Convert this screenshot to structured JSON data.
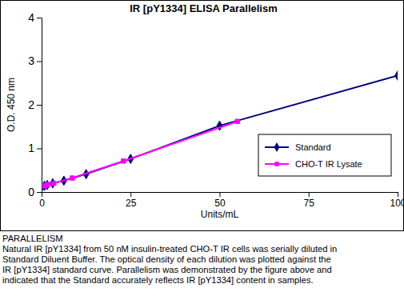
{
  "chart_data": {
    "type": "line",
    "title": "IR [pY1334] ELISA Parallelism",
    "x_label": "Units/mL",
    "y_label": "O.D. 450 nm",
    "xlim": [
      0,
      100
    ],
    "xticks": [
      0,
      25,
      50,
      75,
      100
    ],
    "ylim": [
      0,
      4
    ],
    "yticks": [
      0,
      1,
      2,
      3,
      4
    ],
    "grid": false,
    "legend": "lower right",
    "series": [
      {
        "name": "Standard",
        "color": "#000080",
        "marker": "diamond",
        "x": [
          0,
          0.78,
          1.56,
          3.13,
          6.25,
          12.5,
          25,
          50,
          100
        ],
        "values": [
          0.12,
          0.14,
          0.16,
          0.2,
          0.26,
          0.41,
          0.76,
          1.52,
          2.67
        ]
      },
      {
        "name": "CHO-T IR Lysate",
        "color": "#ff00ff",
        "marker": "square",
        "x": [
          0.86,
          1.7,
          3.4,
          8.6,
          23,
          55
        ],
        "values": [
          0.14,
          0.17,
          0.2,
          0.32,
          0.71,
          1.62
        ]
      }
    ],
    "annotations": [
      "PARALLELISM",
      "Natural IR [pY1334] from 50 nM insulin-treated CHO-T IR cells was serially diluted in",
      "Standard Diluent Buffer. The optical density of each dilution was plotted against the",
      "IR [pY1334] standard curve. Parallelism was demonstrated by the figure above and",
      "indicated that the Standard accurately reflects IR [pY1334] content in samples."
    ]
  }
}
